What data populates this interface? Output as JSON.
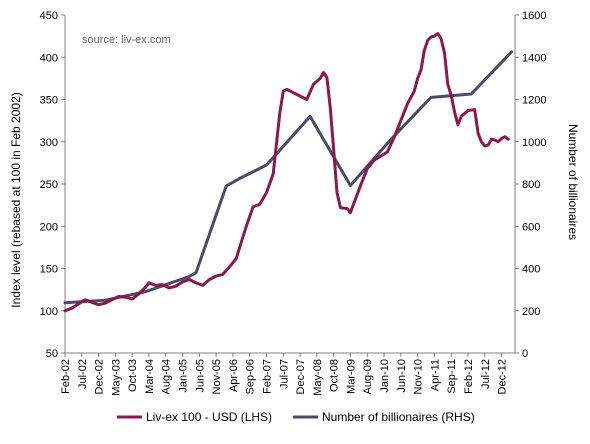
{
  "chart_data": {
    "type": "line",
    "annotation": "source: liv-ex.com",
    "ylabel_left": "Index level (rebased at 100 in Feb 2002)",
    "ylabel_right": "Number of billionaires",
    "xlabel": "",
    "ylim_left": [
      50,
      450
    ],
    "ylim_right": [
      0,
      1600
    ],
    "yticks_left": [
      "50",
      "100",
      "150",
      "200",
      "250",
      "300",
      "350",
      "400",
      "450"
    ],
    "yticks_right": [
      "0",
      "200",
      "400",
      "600",
      "800",
      "1000",
      "1200",
      "1400",
      "1600"
    ],
    "x_start": "Feb-02",
    "x_end": "Apr-13",
    "x_tick_labels": [
      "Feb-02",
      "Jul-02",
      "Dec-02",
      "May-03",
      "Oct-03",
      "Mar-04",
      "Aug-04",
      "Jan-05",
      "Jun-05",
      "Nov-05",
      "Apr-06",
      "Sep-06",
      "Feb-07",
      "Jul-07",
      "Dec-07",
      "May-08",
      "Oct-08",
      "Mar-09",
      "Aug-09",
      "Jan-10",
      "Jun-10",
      "Nov-10",
      "Apr-11",
      "Sep-11",
      "Feb-12",
      "Jul-12",
      "Dec-12"
    ],
    "grid": false,
    "legend_position": "bottom",
    "series": [
      {
        "name": "Liv-ex 100 - USD (LHS)",
        "axis": "left",
        "color": "#8B1A4A",
        "points": [
          [
            "Feb-02",
            100
          ],
          [
            "Apr-02",
            103
          ],
          [
            "Jun-02",
            108
          ],
          [
            "Aug-02",
            113
          ],
          [
            "Oct-02",
            110
          ],
          [
            "Dec-02",
            107
          ],
          [
            "Feb-03",
            109
          ],
          [
            "Apr-03",
            113
          ],
          [
            "Jun-03",
            117
          ],
          [
            "Aug-03",
            116
          ],
          [
            "Oct-03",
            114
          ],
          [
            "Dec-03",
            120
          ],
          [
            "Feb-04",
            128
          ],
          [
            "Mar-04",
            133
          ],
          [
            "May-04",
            130
          ],
          [
            "Jul-04",
            131
          ],
          [
            "Sep-04",
            127
          ],
          [
            "Nov-04",
            129
          ],
          [
            "Jan-05",
            134
          ],
          [
            "Mar-05",
            137
          ],
          [
            "May-05",
            133
          ],
          [
            "Jul-05",
            130
          ],
          [
            "Sep-05",
            137
          ],
          [
            "Nov-05",
            141
          ],
          [
            "Jan-06",
            143
          ],
          [
            "Mar-06",
            152
          ],
          [
            "May-06",
            162
          ],
          [
            "Jun-06",
            175
          ],
          [
            "Aug-06",
            200
          ],
          [
            "Oct-06",
            223
          ],
          [
            "Dec-06",
            226
          ],
          [
            "Feb-07",
            240
          ],
          [
            "Apr-07",
            262
          ],
          [
            "Jun-07",
            335
          ],
          [
            "Jul-07",
            360
          ],
          [
            "Aug-07",
            362
          ],
          [
            "Oct-07",
            358
          ],
          [
            "Dec-07",
            354
          ],
          [
            "Feb-08",
            350
          ],
          [
            "Apr-08",
            368
          ],
          [
            "Jun-08",
            375
          ],
          [
            "Jul-08",
            382
          ],
          [
            "Aug-08",
            376
          ],
          [
            "Sep-08",
            340
          ],
          [
            "Oct-08",
            290
          ],
          [
            "Nov-08",
            240
          ],
          [
            "Dec-08",
            222
          ],
          [
            "Feb-09",
            221
          ],
          [
            "Mar-09",
            216
          ],
          [
            "Apr-09",
            227
          ],
          [
            "Jun-09",
            248
          ],
          [
            "Aug-09",
            268
          ],
          [
            "Oct-09",
            278
          ],
          [
            "Dec-09",
            283
          ],
          [
            "Feb-10",
            288
          ],
          [
            "Apr-10",
            305
          ],
          [
            "Jun-10",
            325
          ],
          [
            "Aug-10",
            345
          ],
          [
            "Oct-10",
            360
          ],
          [
            "Nov-10",
            375
          ],
          [
            "Dec-10",
            385
          ],
          [
            "Jan-11",
            408
          ],
          [
            "Feb-11",
            420
          ],
          [
            "Mar-11",
            424
          ],
          [
            "Apr-11",
            425
          ],
          [
            "May-11",
            428
          ],
          [
            "Jun-11",
            422
          ],
          [
            "Jul-11",
            405
          ],
          [
            "Aug-11",
            368
          ],
          [
            "Sep-11",
            355
          ],
          [
            "Oct-11",
            335
          ],
          [
            "Nov-11",
            320
          ],
          [
            "Dec-11",
            330
          ],
          [
            "Feb-12",
            337
          ],
          [
            "Apr-12",
            338
          ],
          [
            "May-12",
            310
          ],
          [
            "Jun-12",
            300
          ],
          [
            "Jul-12",
            295
          ],
          [
            "Aug-12",
            296
          ],
          [
            "Sep-12",
            303
          ],
          [
            "Oct-12",
            302
          ],
          [
            "Nov-12",
            300
          ],
          [
            "Dec-12",
            304
          ],
          [
            "Jan-13",
            306
          ],
          [
            "Feb-13",
            303
          ]
        ]
      },
      {
        "name": "Number of billionaires (RHS)",
        "axis": "right",
        "color": "#4A4A6A",
        "points": [
          [
            "Feb-02",
            238
          ],
          [
            "Feb-03",
            250
          ],
          [
            "Feb-04",
            290
          ],
          [
            "Mar-05",
            362
          ],
          [
            "May-05",
            380
          ],
          [
            "Feb-06",
            790
          ],
          [
            "Jun-06",
            826
          ],
          [
            "Feb-07",
            890
          ],
          [
            "Mar-08",
            1120
          ],
          [
            "Mar-09",
            793
          ],
          [
            "Mar-10",
            1010
          ],
          [
            "Mar-11",
            1210
          ],
          [
            "Mar-12",
            1226
          ],
          [
            "Mar-13",
            1426
          ]
        ]
      }
    ]
  }
}
